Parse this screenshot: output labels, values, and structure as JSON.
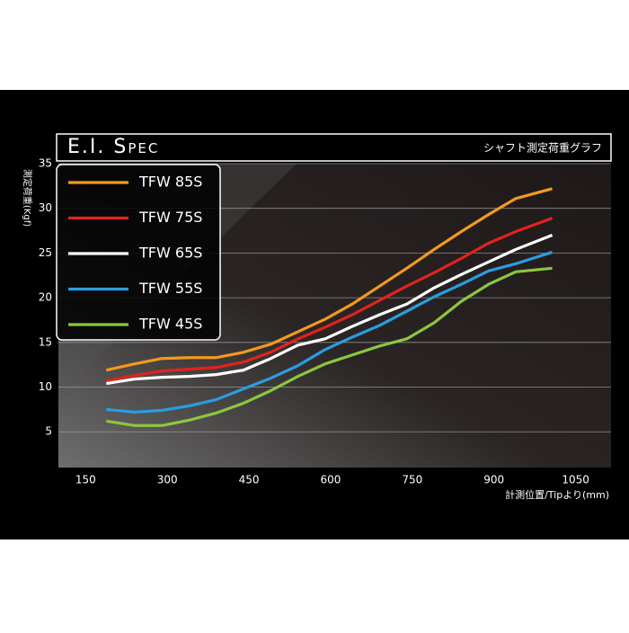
{
  "chart_data": {
    "type": "line",
    "title": "E.I. Spec",
    "subtitle": "シャフト測定荷重グラフ",
    "y_label": "測定荷重(Kgf)",
    "x_label": "計測位置/Tipより(mm)",
    "x": [
      188,
      240,
      290,
      340,
      390,
      440,
      490,
      540,
      590,
      640,
      690,
      740,
      790,
      840,
      890,
      940,
      1007
    ],
    "series": [
      {
        "name": "TFW 85S",
        "color": "#f29a1f",
        "values": [
          11.9,
          12.6,
          13.2,
          13.3,
          13.3,
          13.9,
          14.8,
          16.2,
          17.6,
          19.3,
          21.3,
          23.3,
          25.4,
          27.4,
          29.3,
          31.1,
          32.2
        ]
      },
      {
        "name": "TFW 75S",
        "color": "#e0231c",
        "values": [
          10.7,
          11.3,
          11.8,
          12.0,
          12.2,
          12.8,
          13.9,
          15.4,
          16.7,
          18.1,
          19.7,
          21.3,
          22.8,
          24.4,
          26.1,
          27.4,
          28.9
        ]
      },
      {
        "name": "TFW 65S",
        "color": "#ffffff",
        "values": [
          10.4,
          10.9,
          11.1,
          11.2,
          11.4,
          11.9,
          13.2,
          14.7,
          15.4,
          16.8,
          18.1,
          19.3,
          21.1,
          22.6,
          24.0,
          25.4,
          27.0
        ]
      },
      {
        "name": "TFW 55S",
        "color": "#2a9de0",
        "values": [
          7.5,
          7.2,
          7.4,
          7.9,
          8.6,
          9.8,
          11.0,
          12.4,
          14.2,
          15.6,
          16.9,
          18.5,
          20.1,
          21.5,
          23.0,
          23.8,
          25.1
        ]
      },
      {
        "name": "TFW 45S",
        "color": "#8cc63f",
        "values": [
          6.2,
          5.7,
          5.7,
          6.3,
          7.1,
          8.2,
          9.6,
          11.2,
          12.6,
          13.6,
          14.6,
          15.4,
          17.2,
          19.6,
          21.5,
          22.9,
          23.3
        ]
      }
    ],
    "xlim": [
      100,
      1115
    ],
    "ylim": [
      1,
      35
    ],
    "xticks": [
      150,
      300,
      450,
      600,
      750,
      900,
      1050
    ],
    "yticks": [
      5,
      10,
      15,
      20,
      25,
      30,
      35
    ],
    "grid": true
  }
}
